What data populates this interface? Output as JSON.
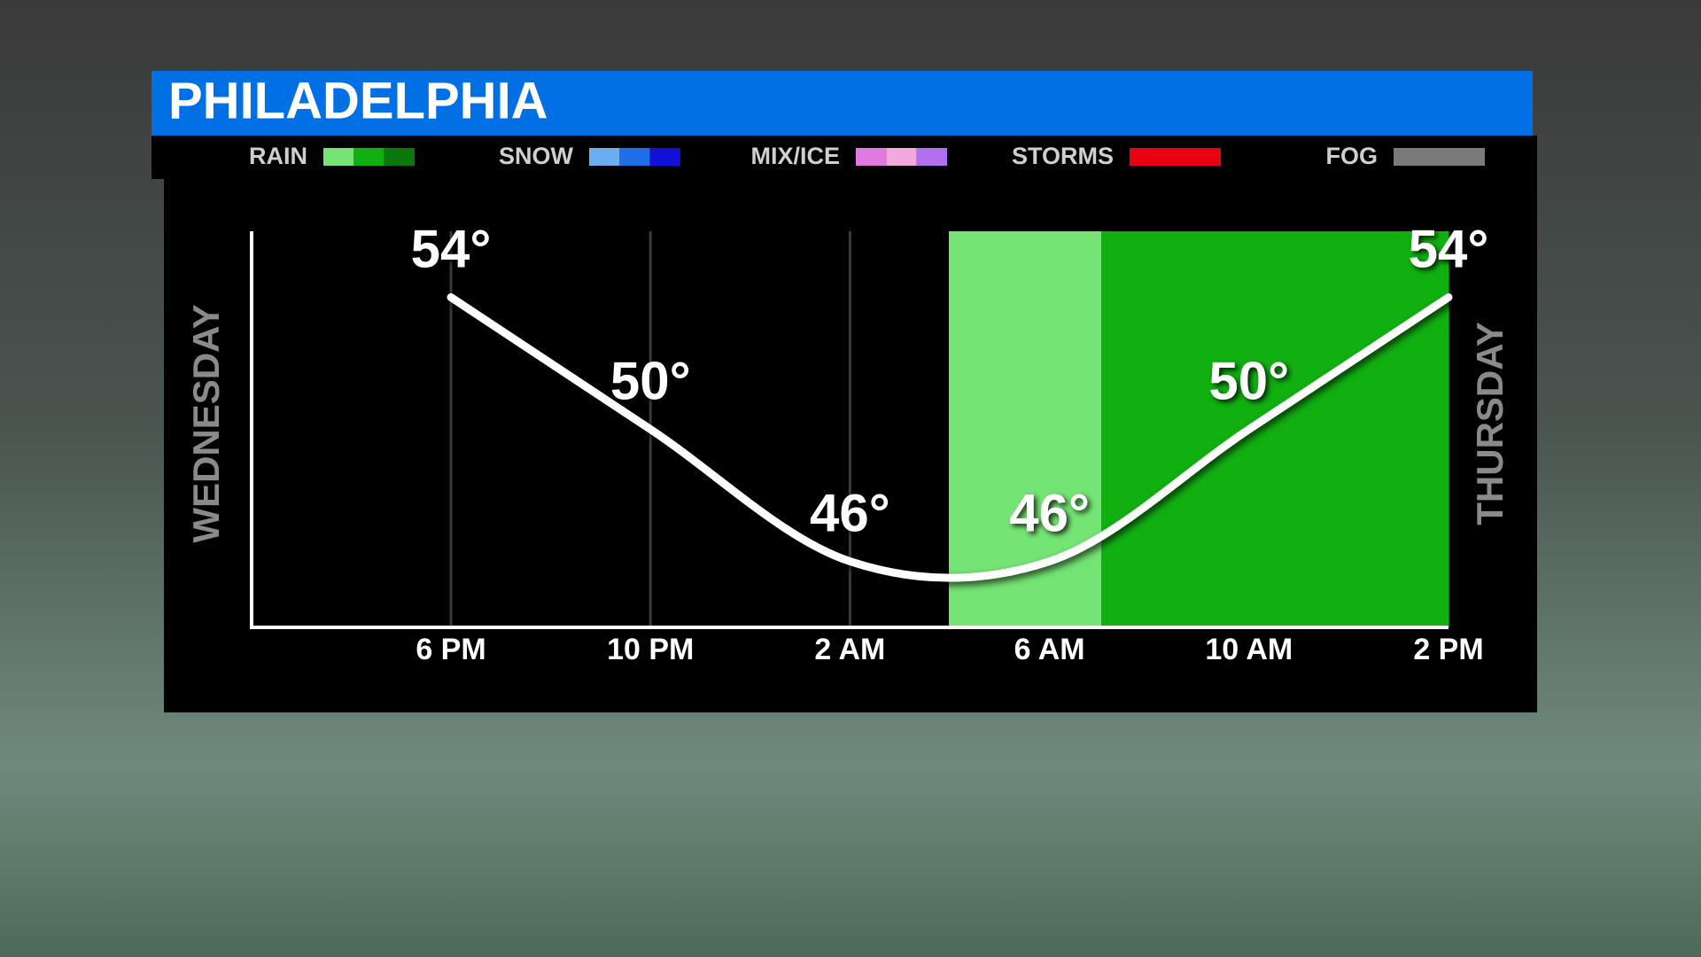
{
  "chart_data": {
    "type": "line",
    "title": "PHILADELPHIA",
    "legend": [
      {
        "label": "RAIN",
        "colors": [
          "#74e474",
          "#11b011",
          "#0b780b"
        ]
      },
      {
        "label": "SNOW",
        "colors": [
          "#6aaef0",
          "#1f6fe8",
          "#1010d8"
        ]
      },
      {
        "label": "MIX/ICE",
        "colors": [
          "#e07ae0",
          "#f4a8e0",
          "#b070f0"
        ]
      },
      {
        "label": "STORMS",
        "colors": [
          "#e80010"
        ]
      },
      {
        "label": "FOG",
        "colors": [
          "#7a7a7a"
        ]
      }
    ],
    "left_label": "WEDNESDAY",
    "right_label": "THURSDAY",
    "categories": [
      "6 PM",
      "10 PM",
      "2 AM",
      "6 AM",
      "10 AM",
      "2 PM"
    ],
    "values": [
      54,
      50,
      46,
      46,
      50,
      54
    ],
    "value_labels": [
      "54°",
      "50°",
      "46°",
      "46°",
      "50°",
      "54°"
    ],
    "color": "#ffffff",
    "ylim": [
      44,
      56
    ],
    "grid": true
  }
}
